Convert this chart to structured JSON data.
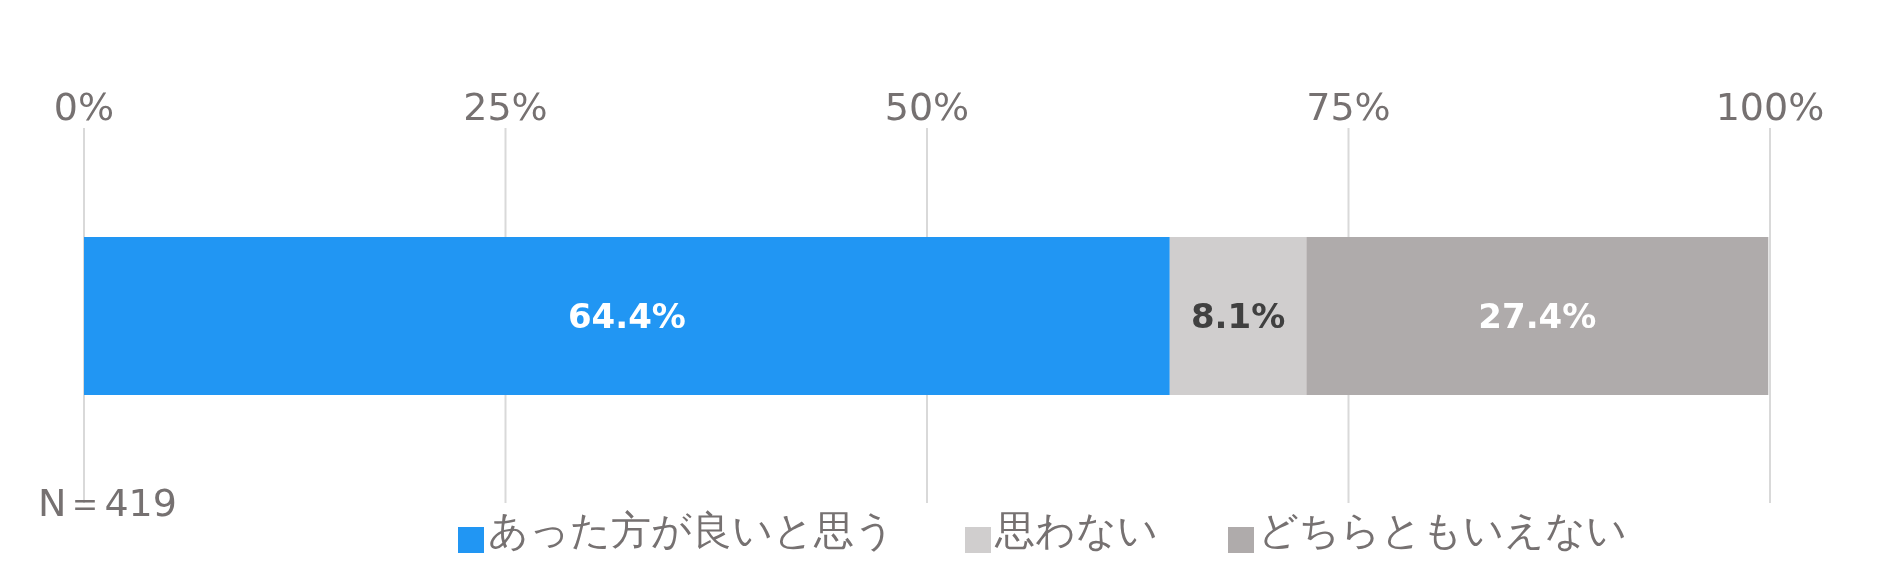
{
  "chart_data": {
    "type": "bar",
    "orientation": "horizontal",
    "stacked": true,
    "categories": [
      null
    ],
    "series": [
      {
        "name": "あった方が良いと思う",
        "color": "#2196f3",
        "values": [
          64.4
        ],
        "value_labels": [
          "64.4%"
        ]
      },
      {
        "name": "思わない",
        "color": "#d0cece",
        "values": [
          8.1
        ],
        "value_labels": [
          "8.1%"
        ]
      },
      {
        "name": "どちらともいえない",
        "color": "#afabab",
        "values": [
          27.4
        ],
        "value_labels": [
          "27.4%"
        ]
      }
    ],
    "xlim": [
      0,
      100
    ],
    "xticks": [
      {
        "value": 0,
        "label": "0%"
      },
      {
        "value": 25,
        "label": "25%"
      },
      {
        "value": 50,
        "label": "50%"
      },
      {
        "value": 75,
        "label": "75%"
      },
      {
        "value": 100,
        "label": "100%"
      }
    ],
    "grid": "x",
    "legend": "bottom",
    "annotations": [
      "N＝419"
    ]
  }
}
